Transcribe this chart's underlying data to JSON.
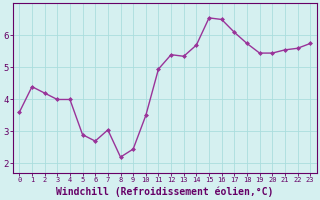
{
  "x": [
    0,
    1,
    2,
    3,
    4,
    5,
    6,
    7,
    8,
    9,
    10,
    11,
    12,
    13,
    14,
    15,
    16,
    17,
    18,
    19,
    20,
    21,
    22,
    23
  ],
  "y": [
    3.6,
    4.4,
    4.2,
    4.0,
    4.0,
    2.9,
    2.7,
    3.05,
    2.2,
    2.45,
    3.5,
    4.95,
    5.4,
    5.35,
    5.7,
    6.55,
    6.5,
    6.1,
    5.75,
    5.45,
    5.45,
    5.55,
    5.6,
    5.75
  ],
  "line_color": "#993399",
  "marker": "D",
  "marker_size": 2.0,
  "linewidth": 1.0,
  "bg_color": "#d5f0f0",
  "grid_color": "#aadddd",
  "axis_color": "#660066",
  "tick_color": "#660066",
  "xlabel": "Windchill (Refroidissement éolien,°C)",
  "xlabel_fontsize": 7,
  "ylabel_ticks": [
    2,
    3,
    4,
    5,
    6
  ],
  "xlim": [
    -0.5,
    23.5
  ],
  "ylim": [
    1.7,
    7.0
  ],
  "xtick_labels": [
    "0",
    "1",
    "2",
    "3",
    "4",
    "5",
    "6",
    "7",
    "8",
    "9",
    "10",
    "11",
    "12",
    "13",
    "14",
    "15",
    "16",
    "17",
    "18",
    "19",
    "20",
    "21",
    "22",
    "23"
  ]
}
